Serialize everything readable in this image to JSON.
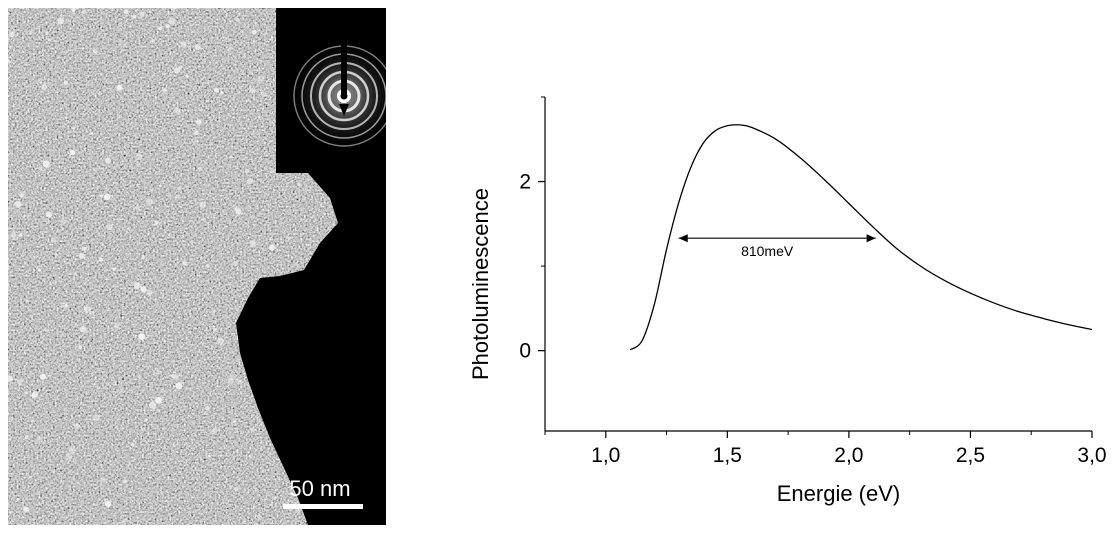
{
  "tem_image": {
    "scale_bar_label": "50 nm",
    "background_color": "#000000"
  },
  "chart_data": {
    "type": "line",
    "xlabel": "Energie (eV)",
    "ylabel": "Photoluminescence",
    "xlim": [
      0.75,
      3.0
    ],
    "ylim": [
      -0.95,
      3.0
    ],
    "x_ticks": [
      "1,0",
      "1,5",
      "2,0",
      "2,5",
      "3,0"
    ],
    "x_tick_values": [
      1.0,
      1.5,
      2.0,
      2.5,
      3.0
    ],
    "y_ticks": [
      "0",
      "2"
    ],
    "y_tick_values": [
      0,
      2
    ],
    "grid": false,
    "series": [
      {
        "color": "#000000",
        "x": [
          1.1,
          1.15,
          1.2,
          1.25,
          1.3,
          1.35,
          1.4,
          1.45,
          1.5,
          1.55,
          1.6,
          1.7,
          1.8,
          1.9,
          2.0,
          2.1,
          2.2,
          2.3,
          2.4,
          2.5,
          2.6,
          2.7,
          2.8,
          2.9,
          3.0
        ],
        "y": [
          0.01,
          0.12,
          0.55,
          1.2,
          1.75,
          2.17,
          2.45,
          2.6,
          2.66,
          2.67,
          2.64,
          2.5,
          2.28,
          2.02,
          1.74,
          1.46,
          1.2,
          0.99,
          0.82,
          0.68,
          0.56,
          0.46,
          0.38,
          0.31,
          0.25
        ]
      }
    ],
    "annotation": {
      "text": "810meV",
      "x_start": 1.3,
      "x_end": 2.11,
      "y": 1.33
    }
  }
}
